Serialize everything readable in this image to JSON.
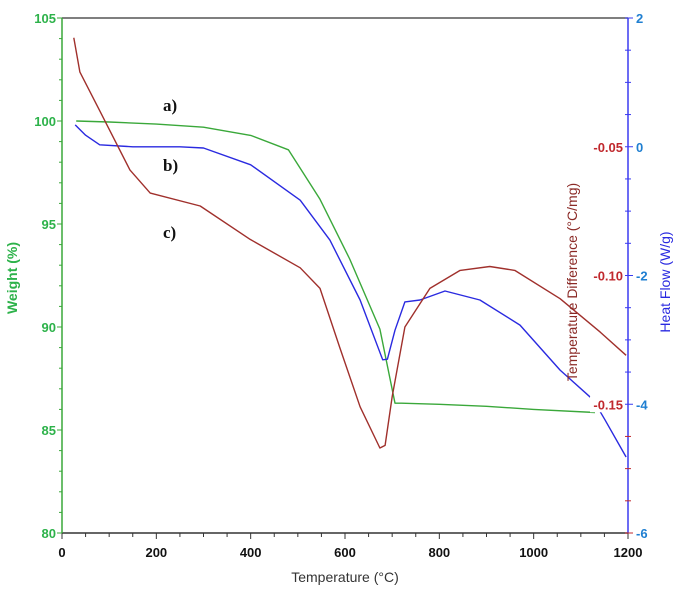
{
  "chart_data": {
    "type": "line",
    "xlabel": "Temperature (°C)",
    "xlim": [
      0,
      1200
    ],
    "xticks": [
      "0",
      "200",
      "400",
      "600",
      "800",
      "1000",
      "1200"
    ],
    "axes": {
      "left": {
        "label": "Weight (%)",
        "range": [
          80,
          105
        ],
        "ticks": [
          "80",
          "85",
          "90",
          "95",
          "100",
          "105"
        ],
        "color": "#2db24a"
      },
      "right_heat_flow": {
        "label": "Heat Flow (W/g)",
        "range": [
          -6,
          2
        ],
        "ticks": [
          "-6",
          "-4",
          "-2",
          "0",
          "2"
        ],
        "color": "#2a2ae0"
      },
      "right_temp_diff": {
        "label": "Temperature Difference (°C/mg)",
        "range": [
          -0.2,
          0
        ],
        "ticks": [
          "-0.15",
          "-0.10",
          "-0.05"
        ],
        "color": "#c0282d"
      }
    },
    "grid": false,
    "series": [
      {
        "annotation": "a)",
        "axis": "left",
        "color": "#3aa83a",
        "x": [
          30,
          100,
          200,
          300,
          400,
          480,
          547,
          610,
          674,
          706,
          720,
          800,
          900,
          1000,
          1130
        ],
        "y": [
          100.0,
          99.95,
          99.85,
          99.7,
          99.3,
          98.6,
          96.2,
          93.3,
          89.9,
          86.3,
          86.3,
          86.25,
          86.15,
          86.0,
          85.85
        ]
      },
      {
        "annotation": "b)",
        "axis": "right_heat_flow",
        "color": "#2a2ae0",
        "x": [
          28,
          50,
          80,
          150,
          250,
          300,
          400,
          505,
          568,
          632,
          680,
          690,
          706,
          727,
          759,
          812,
          886,
          971,
          1056,
          1126,
          1151,
          1196
        ],
        "y": [
          0.34,
          0.18,
          0.03,
          0.0,
          0.0,
          -0.02,
          -0.28,
          -0.83,
          -1.45,
          -2.38,
          -3.31,
          -3.3,
          -2.85,
          -2.41,
          -2.38,
          -2.24,
          -2.38,
          -2.77,
          -3.47,
          -3.93,
          -4.24,
          -4.82
        ]
      },
      {
        "annotation": "c)",
        "axis": "right_temp_diff",
        "color": "#a0302c",
        "x": [
          25,
          38,
          80,
          144,
          187,
          293,
          399,
          505,
          547,
          589,
          632,
          674,
          685,
          700,
          727,
          780,
          844,
          907,
          960,
          1056,
          1141,
          1196
        ],
        "y": [
          -0.0077,
          -0.021,
          -0.036,
          -0.059,
          -0.068,
          -0.073,
          -0.086,
          -0.097,
          -0.105,
          -0.128,
          -0.151,
          -0.167,
          -0.166,
          -0.147,
          -0.12,
          -0.105,
          -0.098,
          -0.0965,
          -0.098,
          -0.109,
          -0.122,
          -0.131
        ]
      }
    ]
  }
}
